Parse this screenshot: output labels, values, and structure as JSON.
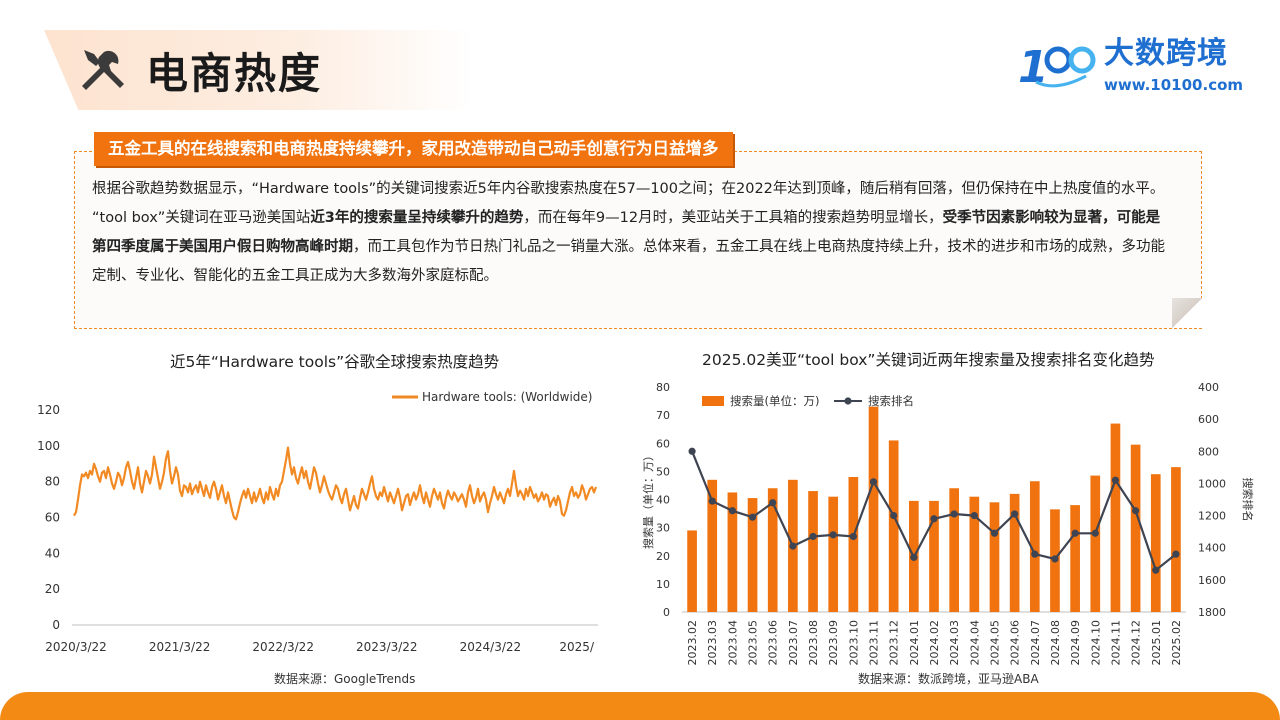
{
  "header": {
    "title": "电商热度",
    "logo_name": "大数跨境",
    "logo_url": "www.10100.com"
  },
  "banner": "五金工具的在线搜索和电商热度持续攀升，家用改造带动自己动手创意行为日益增多",
  "paragraphs": {
    "p1": "根据谷歌趋势数据显示，“Hardware tools”的关键词搜索近5年内谷歌搜索热度在57—100之间；在2022年达到顶峰，随后稍有回落，但仍保持在中上热度值的水平。",
    "p2_a": "“tool box”关键词在亚马逊美国站",
    "p2_b": "近3年的搜索量呈持续攀升的趋势",
    "p2_c": "，而在每年9—12月时，美亚站关于工具箱的搜索趋势明显增长，",
    "p2_d": "受季节因素影响较为显著，可能是第四季度属于美国用户假日购物高峰时期",
    "p2_e": "，而工具包作为节日热门礼品之一销量大涨。总体来看，五金工具在线上电商热度持续上升，技术的进步和市场的成熟，多功能定制、专业化、智能化的五金工具正成为大多数海外家庭标配。"
  },
  "colors": {
    "accent": "#f0730f",
    "line_orange": "#f28a24",
    "rank_line": "#3f4452",
    "brand_blue": "#1f6fd1"
  },
  "chart_data": [
    {
      "type": "line",
      "title": "近5年“Hardware tools”谷歌全球搜索热度趋势",
      "source": "数据来源：GoogleTrends",
      "legend": "Hardware tools: (Worldwide)",
      "legend_position": "top-right",
      "x_ticks": [
        "2020/3/22",
        "2021/3/22",
        "2022/3/22",
        "2023/3/22",
        "2024/3/22",
        "2025/"
      ],
      "ylim": [
        0,
        120
      ],
      "y_ticks": [
        0,
        20,
        40,
        60,
        80,
        100,
        120
      ],
      "grid": false,
      "series": [
        {
          "name": "Hardware tools: (Worldwide)",
          "values": [
            61,
            63,
            70,
            78,
            84,
            83,
            85,
            82,
            86,
            84,
            90,
            87,
            83,
            80,
            85,
            86,
            82,
            88,
            84,
            79,
            76,
            80,
            85,
            83,
            78,
            82,
            88,
            91,
            86,
            80,
            76,
            82,
            88,
            79,
            74,
            80,
            86,
            83,
            79,
            84,
            94,
            88,
            82,
            76,
            80,
            85,
            93,
            97,
            86,
            79,
            83,
            88,
            84,
            75,
            72,
            78,
            77,
            74,
            79,
            73,
            76,
            78,
            74,
            80,
            76,
            72,
            78,
            74,
            71,
            77,
            80,
            76,
            70,
            74,
            78,
            72,
            68,
            74,
            69,
            64,
            60,
            59,
            63,
            68,
            72,
            75,
            71,
            76,
            72,
            68,
            74,
            69,
            72,
            76,
            71,
            68,
            74,
            70,
            77,
            73,
            70,
            76,
            72,
            78,
            80,
            86,
            92,
            99,
            90,
            84,
            88,
            82,
            79,
            84,
            88,
            82,
            86,
            80,
            76,
            82,
            88,
            85,
            79,
            74,
            78,
            83,
            79,
            75,
            72,
            70,
            74,
            78,
            76,
            71,
            68,
            73,
            76,
            70,
            64,
            68,
            72,
            67,
            65,
            71,
            76,
            73,
            70,
            74,
            79,
            83,
            76,
            72,
            70,
            74,
            72,
            77,
            73,
            69,
            74,
            71,
            68,
            72,
            76,
            71,
            64,
            68,
            72,
            73,
            67,
            71,
            74,
            70,
            73,
            78,
            72,
            68,
            74,
            70,
            66,
            72,
            76,
            73,
            70,
            74,
            68,
            65,
            71,
            75,
            72,
            70,
            74,
            72,
            69,
            71,
            73,
            70,
            66,
            74,
            78,
            72,
            68,
            71,
            76,
            69,
            72,
            74,
            70,
            63,
            68,
            72,
            77,
            73,
            70,
            74,
            71,
            68,
            73,
            76,
            72,
            79,
            86,
            78,
            72,
            75,
            73,
            70,
            76,
            72,
            77,
            74,
            71,
            73,
            69,
            71,
            74,
            70,
            73,
            72,
            66,
            69,
            71,
            67,
            72,
            69,
            62,
            61,
            64,
            69,
            74,
            77,
            72,
            74,
            71,
            73,
            78,
            75,
            70,
            73,
            76,
            77,
            74,
            77
          ]
        }
      ]
    },
    {
      "type": "bar",
      "title": "2025.02美亚“tool box”关键词近两年搜索量及搜索排名变化趋势",
      "source": "数据来源：数派跨境，亚马逊ABA",
      "ylabel": "搜索量（单位：万）",
      "y2label": "搜索排名",
      "legend_position": "top-left",
      "ylim": [
        0,
        80
      ],
      "y_ticks": [
        0,
        10,
        20,
        30,
        40,
        50,
        60,
        70,
        80
      ],
      "y2lim": [
        400,
        1800
      ],
      "y2_reversed": true,
      "y2_ticks": [
        400,
        600,
        800,
        1000,
        1200,
        1400,
        1600,
        1800
      ],
      "categories": [
        "2023.02",
        "2023.03",
        "2023.04",
        "2023.05",
        "2023.06",
        "2023.07",
        "2023.08",
        "2023.09",
        "2023.10",
        "2023.11",
        "2023.12",
        "2024.01",
        "2024.02",
        "2024.03",
        "2024.04",
        "2024.05",
        "2024.06",
        "2024.07",
        "2024.08",
        "2024.09",
        "2024.10",
        "2024.11",
        "2024.12",
        "2025.01",
        "2025.02"
      ],
      "series": [
        {
          "name": "搜索量(单位：万)",
          "type": "bar",
          "values": [
            29,
            47,
            42.5,
            40.5,
            44,
            47,
            43,
            41,
            48,
            73,
            61,
            39.5,
            39.5,
            44,
            41,
            39,
            42,
            46.5,
            36.5,
            38,
            48.5,
            67,
            59.5,
            49,
            51.5
          ]
        },
        {
          "name": "搜索排名",
          "type": "line",
          "values": [
            800,
            1110,
            1170,
            1210,
            1120,
            1390,
            1330,
            1320,
            1330,
            990,
            1200,
            1460,
            1220,
            1190,
            1200,
            1310,
            1190,
            1440,
            1470,
            1310,
            1310,
            980,
            1170,
            1540,
            1440
          ]
        }
      ]
    }
  ],
  "sources": {
    "left": "数据来源：GoogleTrends",
    "right": "数据来源：数派跨境，亚马逊ABA"
  }
}
